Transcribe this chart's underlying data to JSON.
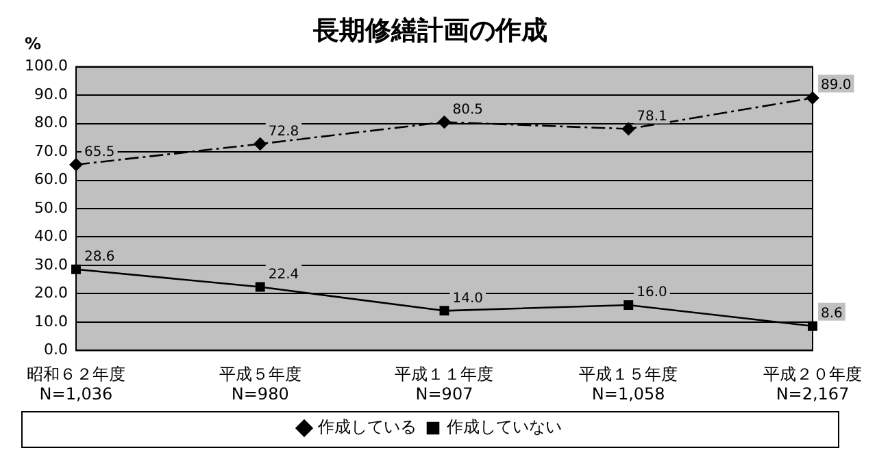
{
  "chart_data": {
    "type": "line",
    "title": "長期修繕計画の作成",
    "ylabel": "%",
    "categories": [
      "昭和６２年度\nN=1,036",
      "平成５年度\nN=980",
      "平成１１年度\nN=907",
      "平成１５年度\nN=1,058",
      "平成２０年度\nN=2,167"
    ],
    "series": [
      {
        "name": "作成している",
        "color": "#000000",
        "values": [
          65.5,
          72.8,
          80.5,
          78.1,
          89.0
        ],
        "value_labels": [
          "65.5",
          "72.8",
          "80.5",
          "78.1",
          "89.0"
        ],
        "marker": "diamond",
        "line_style": "dashed"
      },
      {
        "name": "作成していない",
        "color": "#000000",
        "values": [
          28.6,
          22.4,
          14.0,
          16.0,
          8.6
        ],
        "value_labels": [
          "28.6",
          "22.4",
          "14.0",
          "16.0",
          "8.6"
        ],
        "marker": "square",
        "line_style": "solid"
      }
    ],
    "ylim": [
      0,
      100
    ],
    "yticks": [
      {
        "value": 0,
        "label": "0.0"
      },
      {
        "value": 10,
        "label": "10.0"
      },
      {
        "value": 20,
        "label": "20.0"
      },
      {
        "value": 30,
        "label": "30.0"
      },
      {
        "value": 40,
        "label": "40.0"
      },
      {
        "value": 50,
        "label": "50.0"
      },
      {
        "value": 60,
        "label": "60.0"
      },
      {
        "value": 70,
        "label": "70.0"
      },
      {
        "value": 80,
        "label": "80.0"
      },
      {
        "value": 90,
        "label": "90.0"
      },
      {
        "value": 100,
        "label": "100.0"
      }
    ],
    "grid": "y",
    "legend": "bottom"
  }
}
